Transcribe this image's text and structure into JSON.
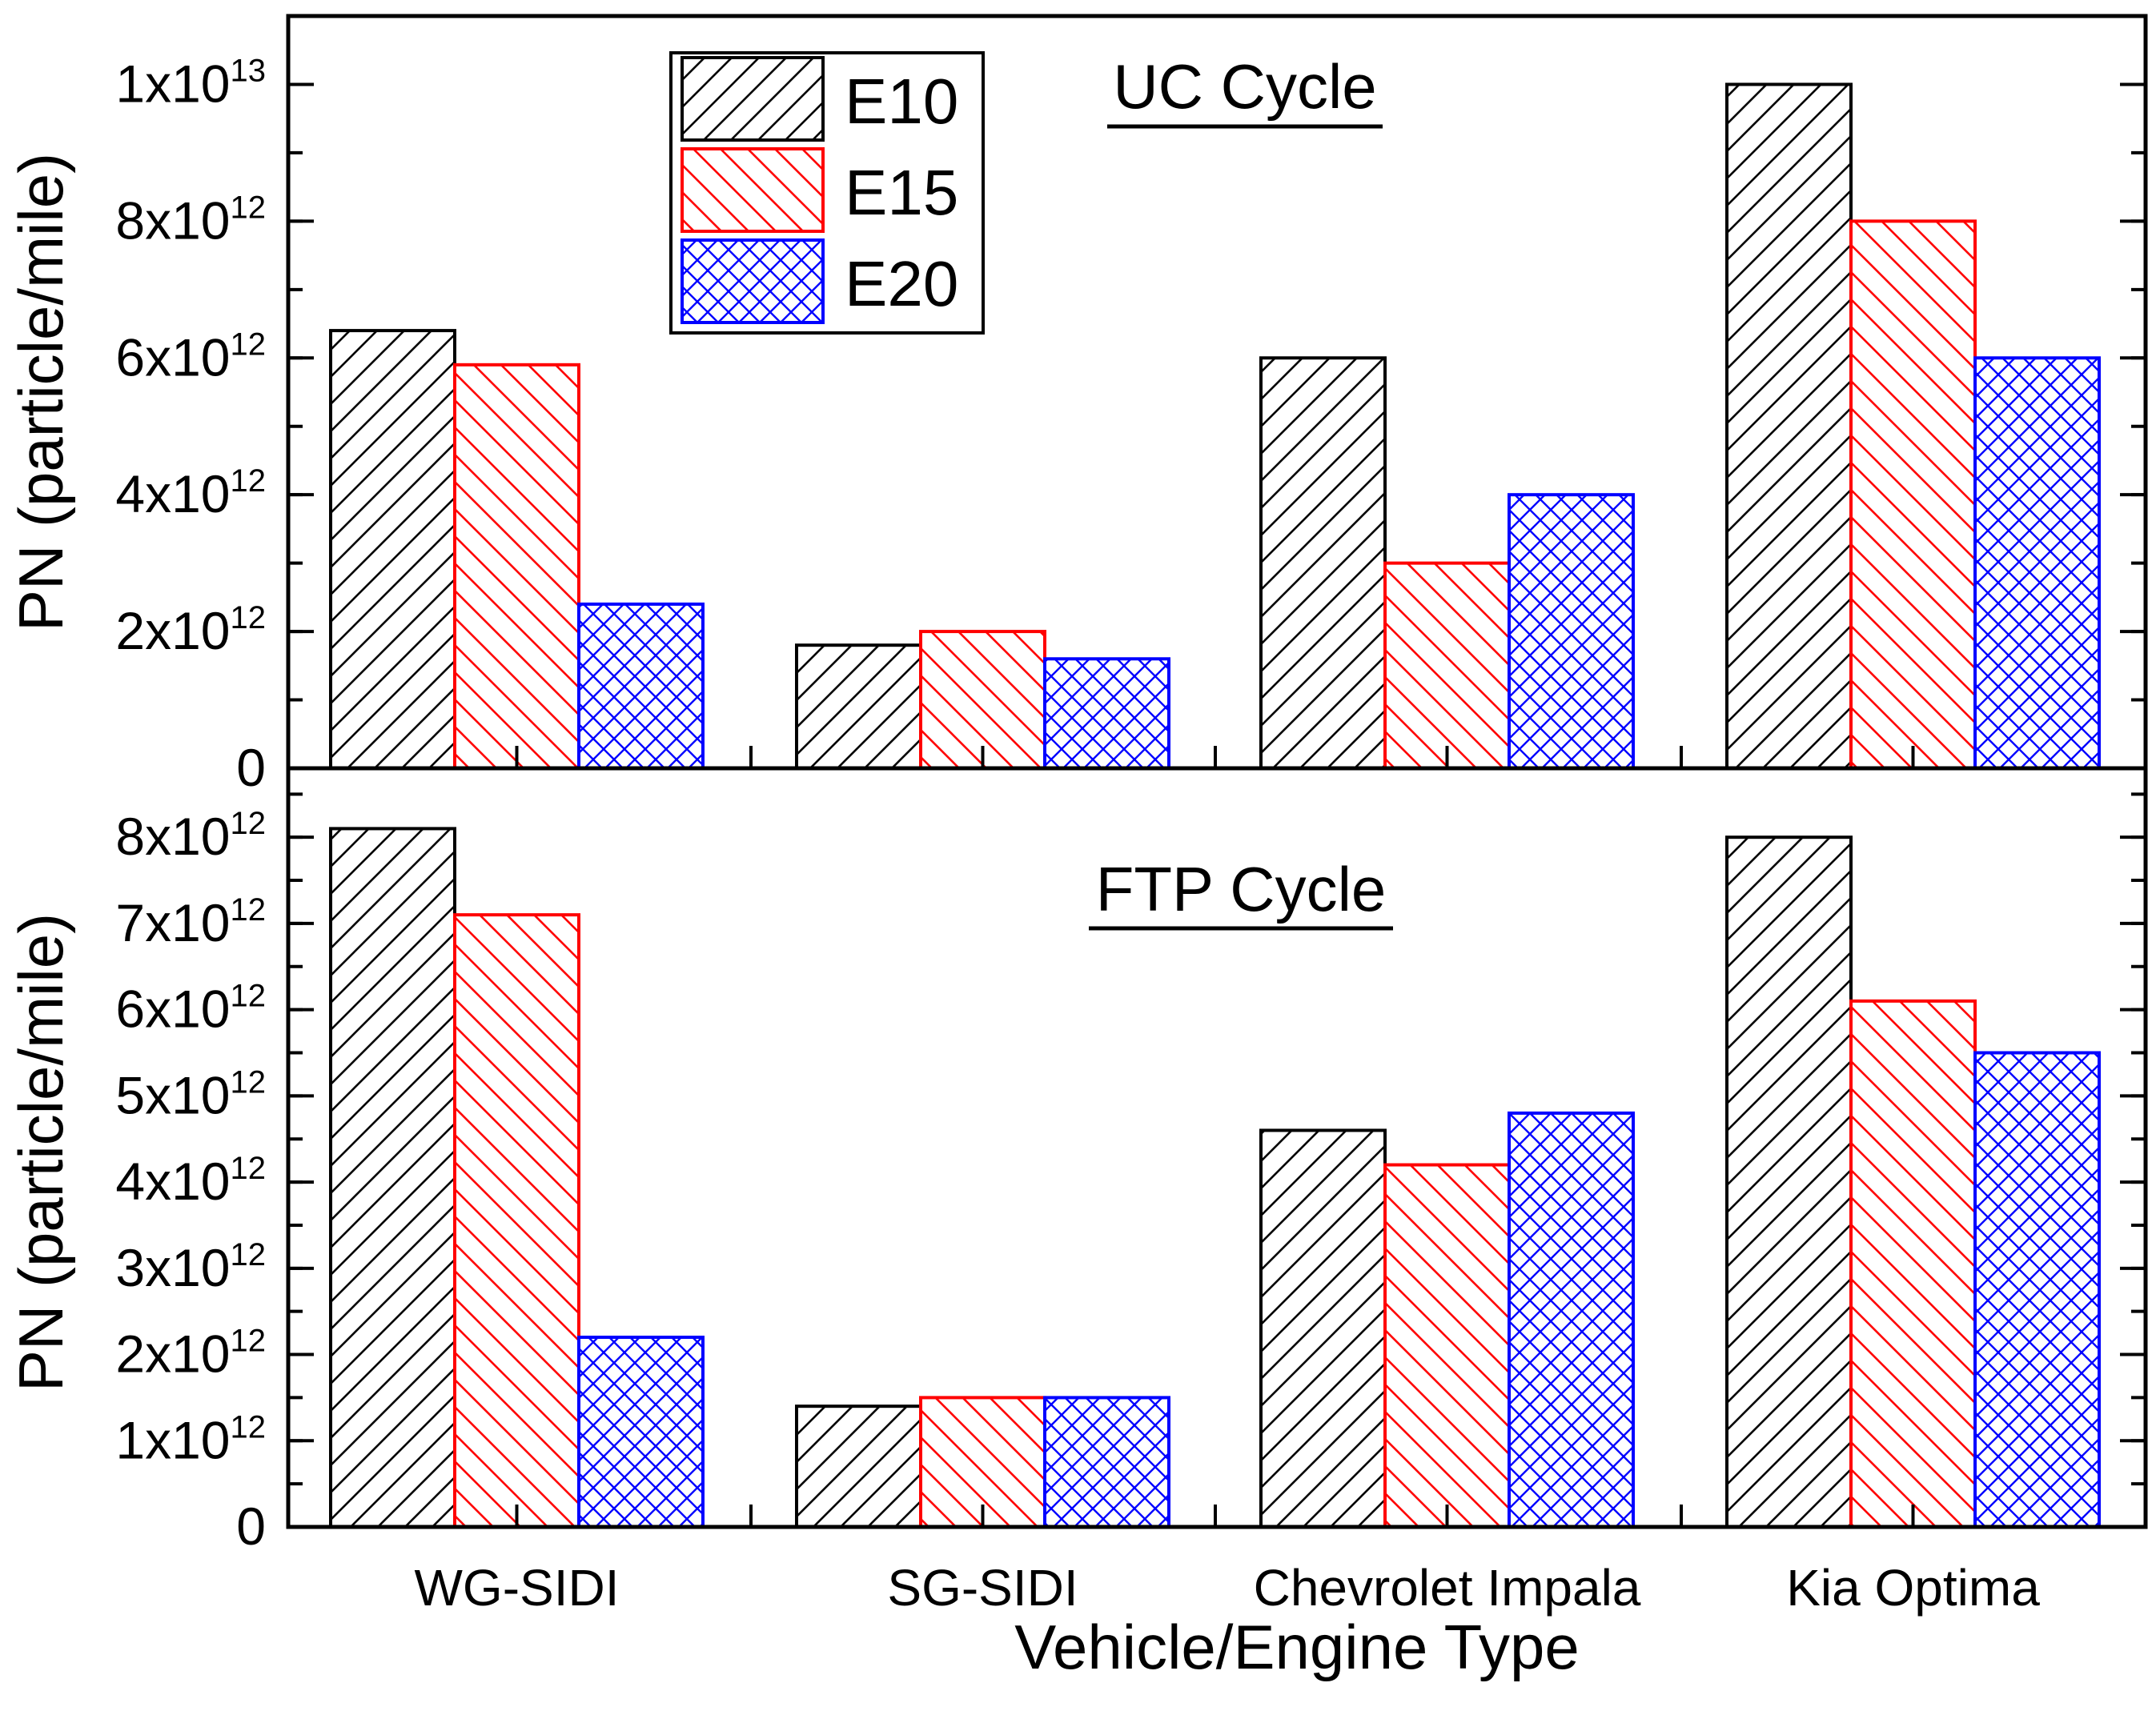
{
  "chart_data": [
    {
      "type": "bar",
      "title": "UC Cycle",
      "ylabel": "PN (particle/mile)",
      "ylim": [
        0,
        11000000000000
      ],
      "ytick_values": [
        0,
        2000000000000,
        4000000000000,
        6000000000000,
        8000000000000,
        10000000000000
      ],
      "ytick_labels": [
        {
          "base": "0",
          "exp": ""
        },
        {
          "base": "2x10",
          "exp": "12"
        },
        {
          "base": "4x10",
          "exp": "12"
        },
        {
          "base": "6x10",
          "exp": "12"
        },
        {
          "base": "8x10",
          "exp": "12"
        },
        {
          "base": "1x10",
          "exp": "13"
        }
      ],
      "minor_step": 1000000000000,
      "categories": [
        "WG-SIDI",
        "SG-SIDI",
        "Chevrolet Impala",
        "Kia Optima"
      ],
      "series": [
        {
          "name": "E10",
          "values": [
            6400000000000,
            1800000000000,
            6000000000000,
            10000000000000
          ]
        },
        {
          "name": "E15",
          "values": [
            5900000000000,
            2000000000000,
            3000000000000,
            8000000000000
          ]
        },
        {
          "name": "E20",
          "values": [
            2400000000000,
            1600000000000,
            4000000000000,
            6000000000000
          ]
        }
      ],
      "legend": "top-left"
    },
    {
      "type": "bar",
      "title": "FTP Cycle",
      "ylabel": "PN (particle/mile)",
      "ylim": [
        0,
        8800000000000
      ],
      "ytick_values": [
        0,
        1000000000000,
        2000000000000,
        3000000000000,
        4000000000000,
        5000000000000,
        6000000000000,
        7000000000000,
        8000000000000
      ],
      "ytick_labels": [
        {
          "base": "0",
          "exp": ""
        },
        {
          "base": "1x10",
          "exp": "12"
        },
        {
          "base": "2x10",
          "exp": "12"
        },
        {
          "base": "3x10",
          "exp": "12"
        },
        {
          "base": "4x10",
          "exp": "12"
        },
        {
          "base": "5x10",
          "exp": "12"
        },
        {
          "base": "6x10",
          "exp": "12"
        },
        {
          "base": "7x10",
          "exp": "12"
        },
        {
          "base": "8x10",
          "exp": "12"
        }
      ],
      "minor_step": 500000000000,
      "categories": [
        "WG-SIDI",
        "SG-SIDI",
        "Chevrolet Impala",
        "Kia Optima"
      ],
      "series": [
        {
          "name": "E10",
          "values": [
            8100000000000,
            1400000000000,
            4600000000000,
            8000000000000
          ]
        },
        {
          "name": "E15",
          "values": [
            7100000000000,
            1500000000000,
            4200000000000,
            6100000000000
          ]
        },
        {
          "name": "E20",
          "values": [
            2200000000000,
            1500000000000,
            4800000000000,
            5500000000000
          ]
        }
      ],
      "xlabel": "Vehicle/Engine Type"
    }
  ],
  "series_colors": {
    "E10": "#000000",
    "E15": "#ff0000",
    "E20": "#0000ff"
  },
  "series_patterns": {
    "E10": "hatch-forward",
    "E15": "hatch-back",
    "E20": "cross-hatch"
  }
}
